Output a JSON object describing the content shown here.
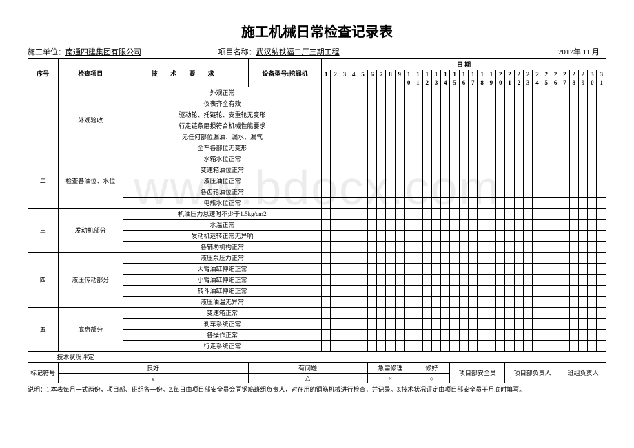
{
  "title": "施工机械日常检查记录表",
  "header": {
    "unit_label": "施工单位：",
    "unit_value": "南通四建集团有限公司",
    "project_label": "项目名称：",
    "project_value": "武汉纳铁福二厂三期工程",
    "date_label": "2017年  11 月"
  },
  "table_head": {
    "seq": "序号",
    "item": "检查项目",
    "req": "技 术 要 求",
    "dev_label": "设备型号:",
    "dev_value": "挖掘机",
    "date_span": "日            期"
  },
  "days_top": [
    "1",
    "2",
    "3",
    "4",
    "5",
    "6",
    "7",
    "8",
    "9",
    "1",
    "1",
    "1",
    "1",
    "1",
    "1",
    "1",
    "1",
    "1",
    "1",
    "2",
    "2",
    "2",
    "2",
    "2",
    "2",
    "2",
    "2",
    "2",
    "2",
    "3",
    "3"
  ],
  "days_bot": [
    "",
    "",
    "",
    "",
    "",
    "",
    "",
    "",
    "",
    "0",
    "1",
    "2",
    "3",
    "4",
    "5",
    "6",
    "7",
    "8",
    "9",
    "0",
    "1",
    "2",
    "3",
    "4",
    "5",
    "6",
    "7",
    "8",
    "9",
    "0",
    "1"
  ],
  "sections": [
    {
      "seq": "一",
      "item": "外观验收",
      "rows": [
        "外观正常",
        "仪表齐全有效",
        "驱动轮、托链轮、支重轮无变形",
        "行走链条磨损符合机械性能要求",
        "无任何部位漏油、漏水、漏气",
        "全车各部位无变形"
      ]
    },
    {
      "seq": "二",
      "item": "检查各油位、水位",
      "rows": [
        "水箱水位正常",
        "变速箱油位正常",
        "液压油位正常",
        "各齿轮油位正常",
        "电瓶水位正常"
      ]
    },
    {
      "seq": "三",
      "item": "发动机部分",
      "rows": [
        "机油压力怠速时不少于1.5kg/cm2",
        "水温正常",
        "发动机运转正常无异响",
        "各辅助机构正常"
      ]
    },
    {
      "seq": "四",
      "item": "液压传动部分",
      "rows": [
        "液压泵压力正常",
        "大臂油缸伸缩正常",
        "小臂油缸伸缩正常",
        "转斗油缸伸缩正常",
        "液压油温无异常"
      ]
    },
    {
      "seq": "五",
      "item": "底盘部分",
      "rows": [
        "变速箱正常",
        "刹车系统正常",
        "各操作正常",
        "行走系统正常"
      ]
    }
  ],
  "tech_status": "技术状况评定",
  "legend": {
    "label": "标记符号",
    "good": "良好",
    "good_sym": "√",
    "problem": "有问题",
    "problem_sym": "△",
    "urgent": "急需修理",
    "urgent_sym": "×",
    "repaired": "修好",
    "repaired_sym": "○",
    "safety": "项目部安全员",
    "leader": "项目部负责人",
    "team": "班组负责人"
  },
  "note": "说明：1.本表每月一式两份，项目部、班组各一份。2.每日由项目部安全员会同钢筋班组负责人，对在用的钢筋机械进行检查，并记录。3.技术状况评定由项目部安全员于月底时填写。",
  "watermark": "www.bdocx.com"
}
